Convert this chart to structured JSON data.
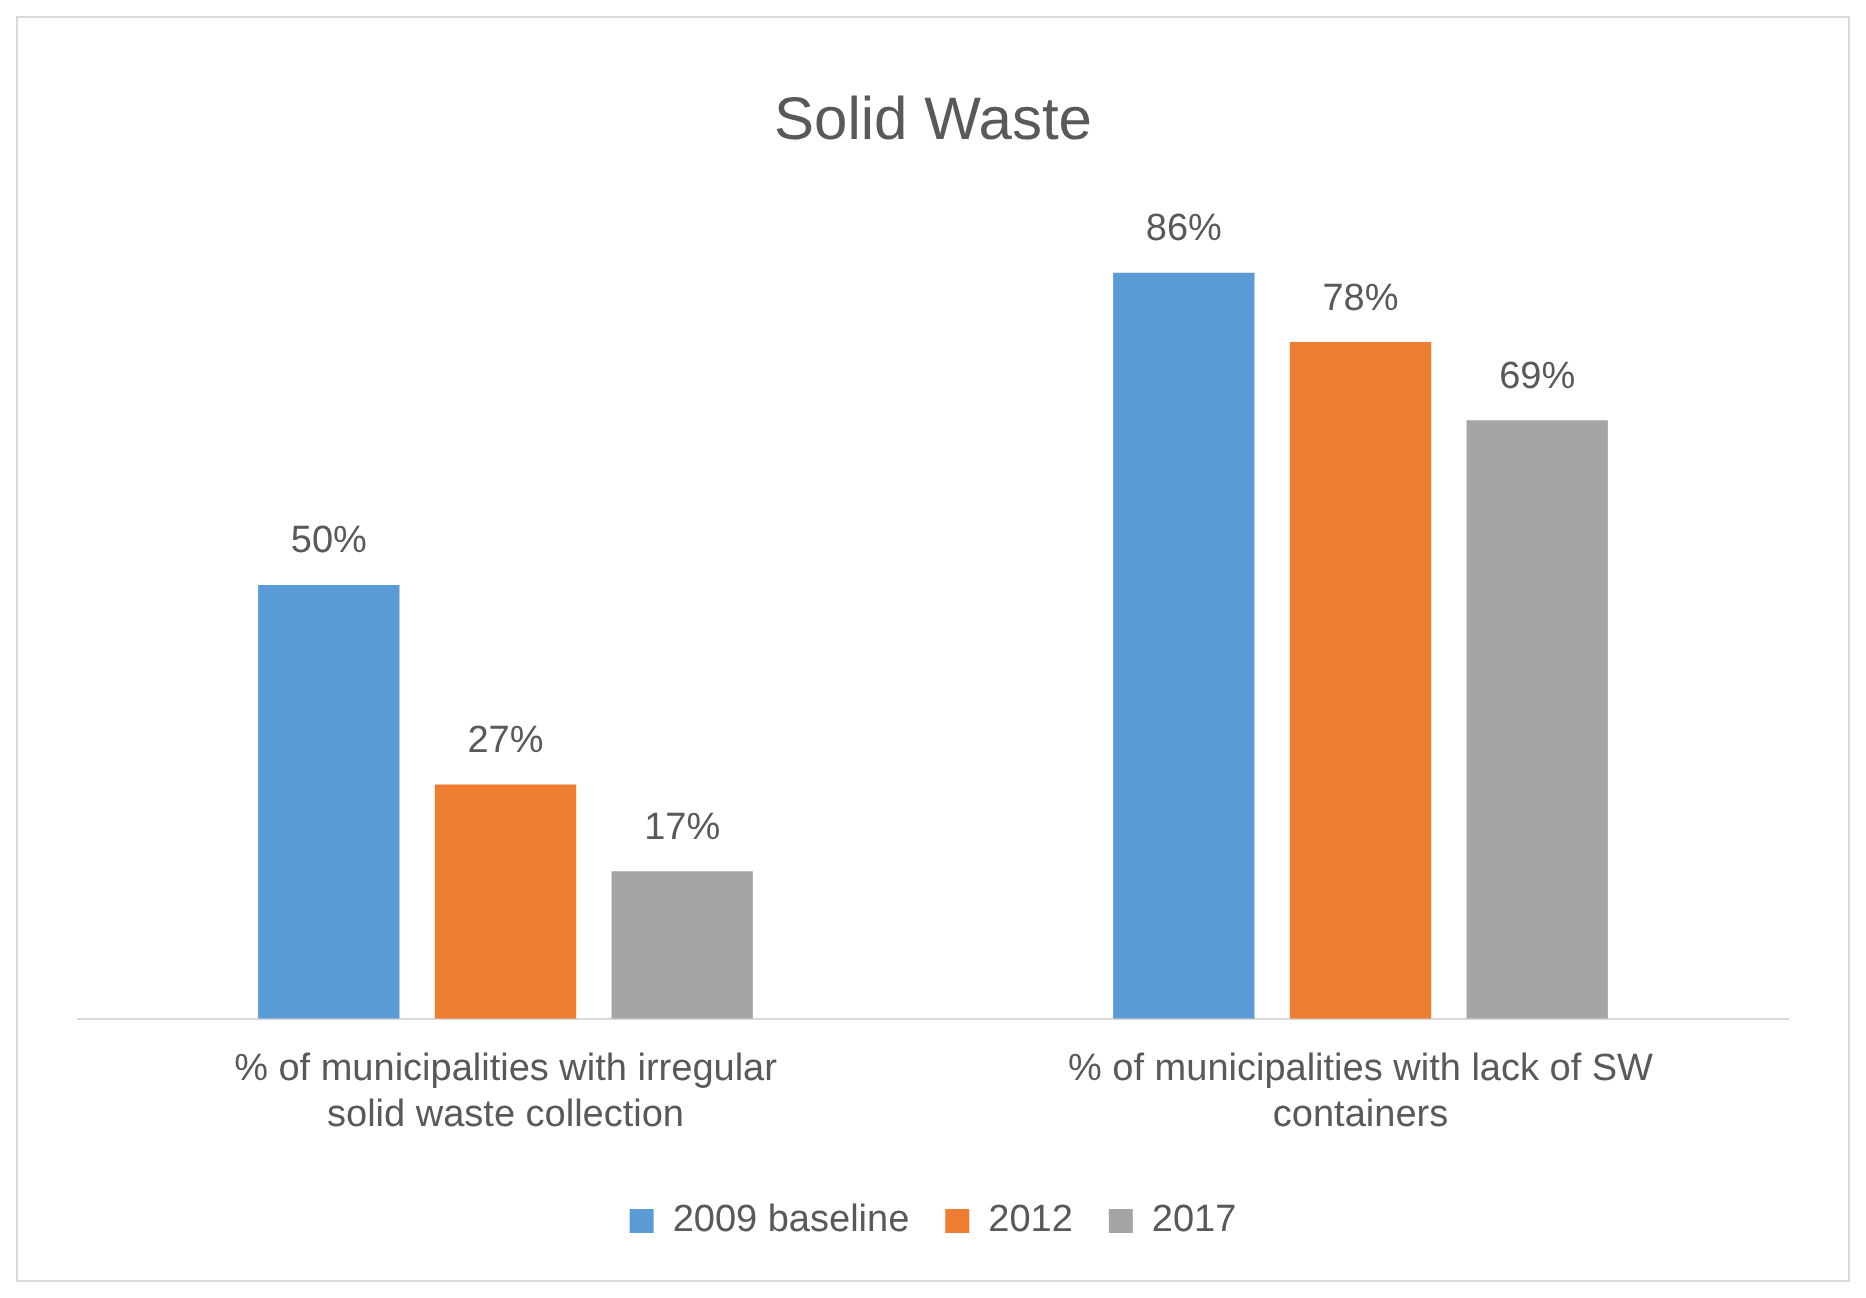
{
  "chart_data": {
    "type": "bar",
    "title": "Solid Waste",
    "categories": [
      "% of municipalities with irregular solid waste collection",
      "% of municipalities with lack of SW containers"
    ],
    "series": [
      {
        "name": "2009 baseline",
        "color": "#5b9bd5",
        "values": [
          50,
          86
        ],
        "value_labels": [
          "50%",
          "86%"
        ]
      },
      {
        "name": "2012",
        "color": "#ed7d31",
        "values": [
          27,
          78
        ],
        "value_labels": [
          "27%",
          "78%"
        ]
      },
      {
        "name": "2017",
        "color": "#a5a5a5",
        "values": [
          17,
          69
        ],
        "value_labels": [
          "17%",
          "69%"
        ]
      }
    ],
    "grid": false,
    "legend": "bottom"
  }
}
